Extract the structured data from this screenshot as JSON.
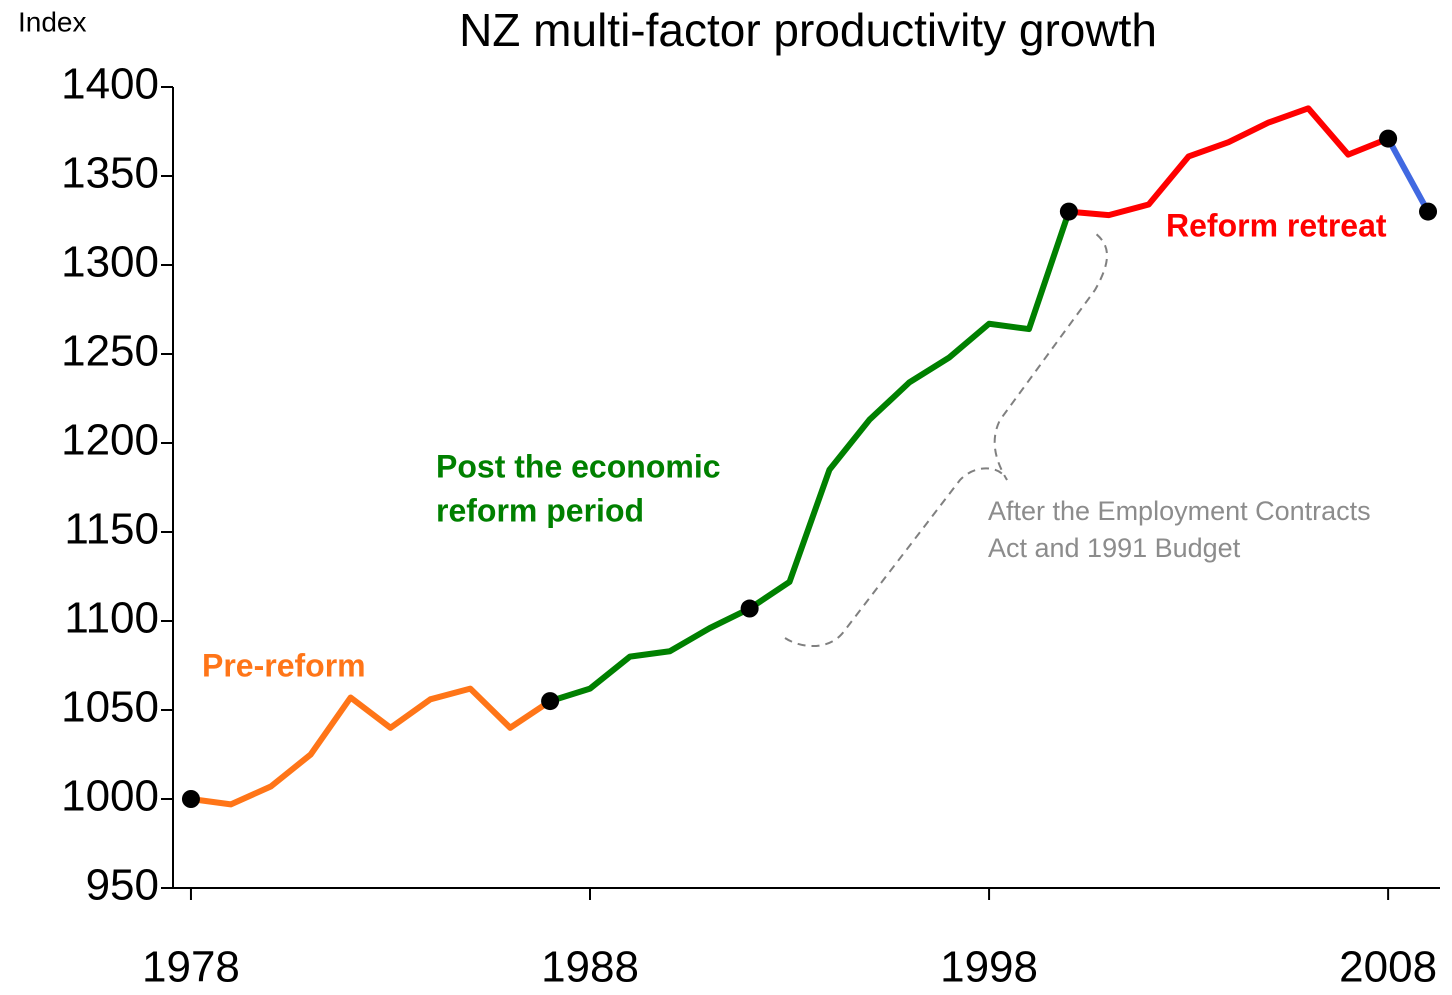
{
  "chart_data": {
    "type": "line",
    "title": "NZ multi-factor productivity growth",
    "y_label": "Index",
    "xlim": [
      1977.55,
      2009.3
    ],
    "xticks": [
      1978,
      1988,
      1998,
      2008
    ],
    "ylim": [
      950,
      1400
    ],
    "yticks": [
      950,
      1000,
      1050,
      1100,
      1150,
      1200,
      1250,
      1300,
      1350,
      1400
    ],
    "highlight_x": [
      1978,
      1987,
      1992,
      2000,
      2008,
      2009
    ],
    "series": [
      {
        "name": "Pre-reform",
        "color": "#ff7518",
        "x": [
          1978,
          1979,
          1980,
          1981,
          1982,
          1983,
          1984,
          1985,
          1986,
          1987
        ],
        "values": [
          1000,
          997,
          1007,
          1025,
          1057,
          1040,
          1056,
          1062,
          1040,
          1055
        ]
      },
      {
        "name": "Post the economic reform period",
        "color": "#008000",
        "x": [
          1987,
          1988,
          1989,
          1990,
          1991,
          1992,
          1993,
          1994,
          1995,
          1996,
          1997,
          1998,
          1999,
          2000
        ],
        "values": [
          1055,
          1062,
          1080,
          1083,
          1096,
          1107,
          1122,
          1185,
          1213,
          1234,
          1248,
          1267,
          1264,
          1330
        ]
      },
      {
        "name": "Reform retreat",
        "color": "#ff0000",
        "x": [
          2000,
          2001,
          2002,
          2003,
          2004,
          2005,
          2006,
          2007,
          2008
        ],
        "values": [
          1330,
          1328,
          1334,
          1361,
          1369,
          1380,
          1388,
          1362,
          1371
        ]
      },
      {
        "color": "#4169e1",
        "x": [
          2008,
          2009
        ],
        "values": [
          1371,
          1330
        ]
      }
    ],
    "annotations": [
      {
        "lines": [
          "Pre-reform"
        ],
        "color": "#ff7518"
      },
      {
        "lines": [
          "Post the economic",
          "reform period"
        ],
        "color": "#008000"
      },
      {
        "lines": [
          "Reform retreat"
        ],
        "color": "#ff0000"
      },
      {
        "lines": [
          "After the Employment Contracts",
          "Act and 1991 Budget"
        ],
        "color": "#8c8c8c"
      }
    ]
  }
}
